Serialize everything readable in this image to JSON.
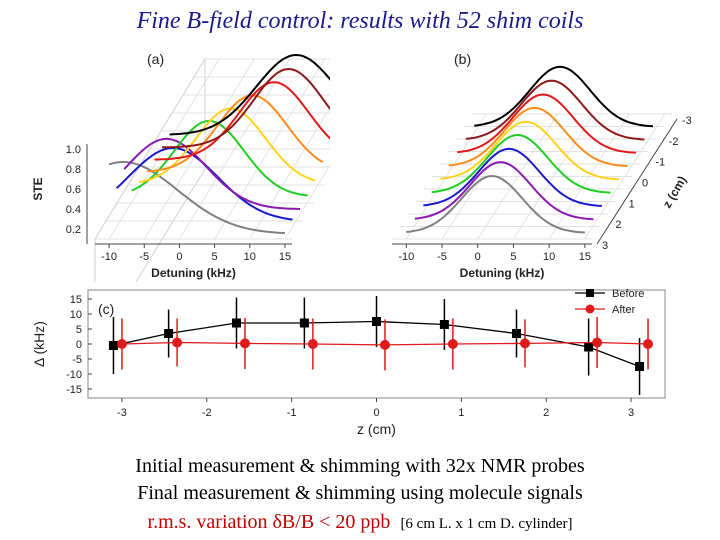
{
  "title": "Fine B-field control: results with 52 shim coils",
  "captions": {
    "line1": "Initial measurement & shimming with 32x NMR probes",
    "line2": "Final measurement & shimming using molecule signals",
    "line3": "r.m.s. variation δB/B < 20 ppb",
    "line3_note": "[6 cm L. x 1 cm D. cylinder]"
  },
  "chart_data": [
    {
      "type": "line",
      "panel": "(a)",
      "projection": "3d-waterfall",
      "xlabel": "Detuning (kHz)",
      "ylabel": "STE",
      "x_ticks": [
        "-10",
        "-5",
        "0",
        "5",
        "10",
        "15"
      ],
      "y_ticks": [
        "0.2",
        "0.4",
        "0.6",
        "0.8",
        "1.0"
      ],
      "xlim": [
        -12,
        16
      ],
      "ylim": [
        0.1,
        1.05
      ],
      "grid": true,
      "series": [
        {
          "color": "#808080",
          "peak": 0.9,
          "center": -8,
          "width": 11
        },
        {
          "color": "#1a1acc",
          "peak": 0.92,
          "center": -2,
          "width": 9
        },
        {
          "color": "#8a1ab0",
          "peak": 0.88,
          "center": -4,
          "width": 8
        },
        {
          "color": "#22cc22",
          "peak": 0.95,
          "center": 1,
          "width": 7
        },
        {
          "color": "#ffd21a",
          "peak": 0.95,
          "center": 3,
          "width": 7
        },
        {
          "color": "#ff8c1a",
          "peak": 0.96,
          "center": 5,
          "width": 7
        },
        {
          "color": "#e01a1a",
          "peak": 0.97,
          "center": 7,
          "width": 7
        },
        {
          "color": "#8b1a1a",
          "peak": 0.98,
          "center": 8,
          "width": 7
        },
        {
          "color": "#000000",
          "peak": 1.0,
          "center": 8,
          "width": 8
        }
      ]
    },
    {
      "type": "line",
      "panel": "(b)",
      "projection": "3d-waterfall",
      "xlabel": "Detuning (kHz)",
      "zlabel": "z (cm)",
      "x_ticks": [
        "-10",
        "-5",
        "0",
        "5",
        "10",
        "15"
      ],
      "z_ticks": [
        "-3",
        "-2",
        "-1",
        "0",
        "1",
        "2",
        "3"
      ],
      "xlim": [
        -12,
        16
      ],
      "grid": true,
      "series": [
        {
          "color": "#808080",
          "peak": 0.95,
          "center": 2,
          "width": 6
        },
        {
          "color": "#8a1ab0",
          "peak": 0.96,
          "center": 2,
          "width": 6
        },
        {
          "color": "#1a1acc",
          "peak": 0.96,
          "center": 2,
          "width": 6
        },
        {
          "color": "#22cc22",
          "peak": 0.97,
          "center": 2,
          "width": 6
        },
        {
          "color": "#ffd21a",
          "peak": 0.97,
          "center": 2,
          "width": 6
        },
        {
          "color": "#ff8c1a",
          "peak": 0.98,
          "center": 2,
          "width": 6
        },
        {
          "color": "#e01a1a",
          "peak": 0.98,
          "center": 2,
          "width": 6
        },
        {
          "color": "#8b1a1a",
          "peak": 0.99,
          "center": 2,
          "width": 6
        },
        {
          "color": "#000000",
          "peak": 1.0,
          "center": 2,
          "width": 6
        }
      ]
    },
    {
      "type": "scatter",
      "panel": "(c)",
      "xlabel": "z (cm)",
      "ylabel": "Δ (kHz)",
      "x_ticks": [
        "-3",
        "-2",
        "-1",
        "0",
        "1",
        "2",
        "3"
      ],
      "y_ticks": [
        "15",
        "10",
        "5",
        "0",
        "-5",
        "-10",
        "-15"
      ],
      "xlim": [
        -3.4,
        3.4
      ],
      "ylim": [
        -18,
        18
      ],
      "legend_position": "top-right",
      "series": [
        {
          "name": "Before",
          "color": "#000000",
          "marker": "square",
          "x": [
            -3.1,
            -2.45,
            -1.65,
            -0.85,
            0.0,
            0.8,
            1.65,
            2.5,
            3.1
          ],
          "y": [
            -0.5,
            3.5,
            7.0,
            7.0,
            7.5,
            6.5,
            3.5,
            -1.0,
            -7.5
          ],
          "err": [
            9.5,
            8.0,
            8.5,
            8.5,
            8.5,
            8.5,
            8.0,
            9.5,
            9.5
          ]
        },
        {
          "name": "After",
          "color": "#e01a1a",
          "marker": "circle",
          "x": [
            -3.0,
            -2.35,
            -1.55,
            -0.75,
            0.1,
            0.9,
            1.75,
            2.6,
            3.2
          ],
          "y": [
            0.0,
            0.5,
            0.2,
            0.0,
            -0.3,
            0.0,
            0.2,
            0.5,
            0.0
          ],
          "err": [
            8.5,
            8.0,
            8.5,
            8.5,
            8.5,
            8.5,
            8.0,
            8.5,
            8.5
          ]
        }
      ]
    }
  ]
}
